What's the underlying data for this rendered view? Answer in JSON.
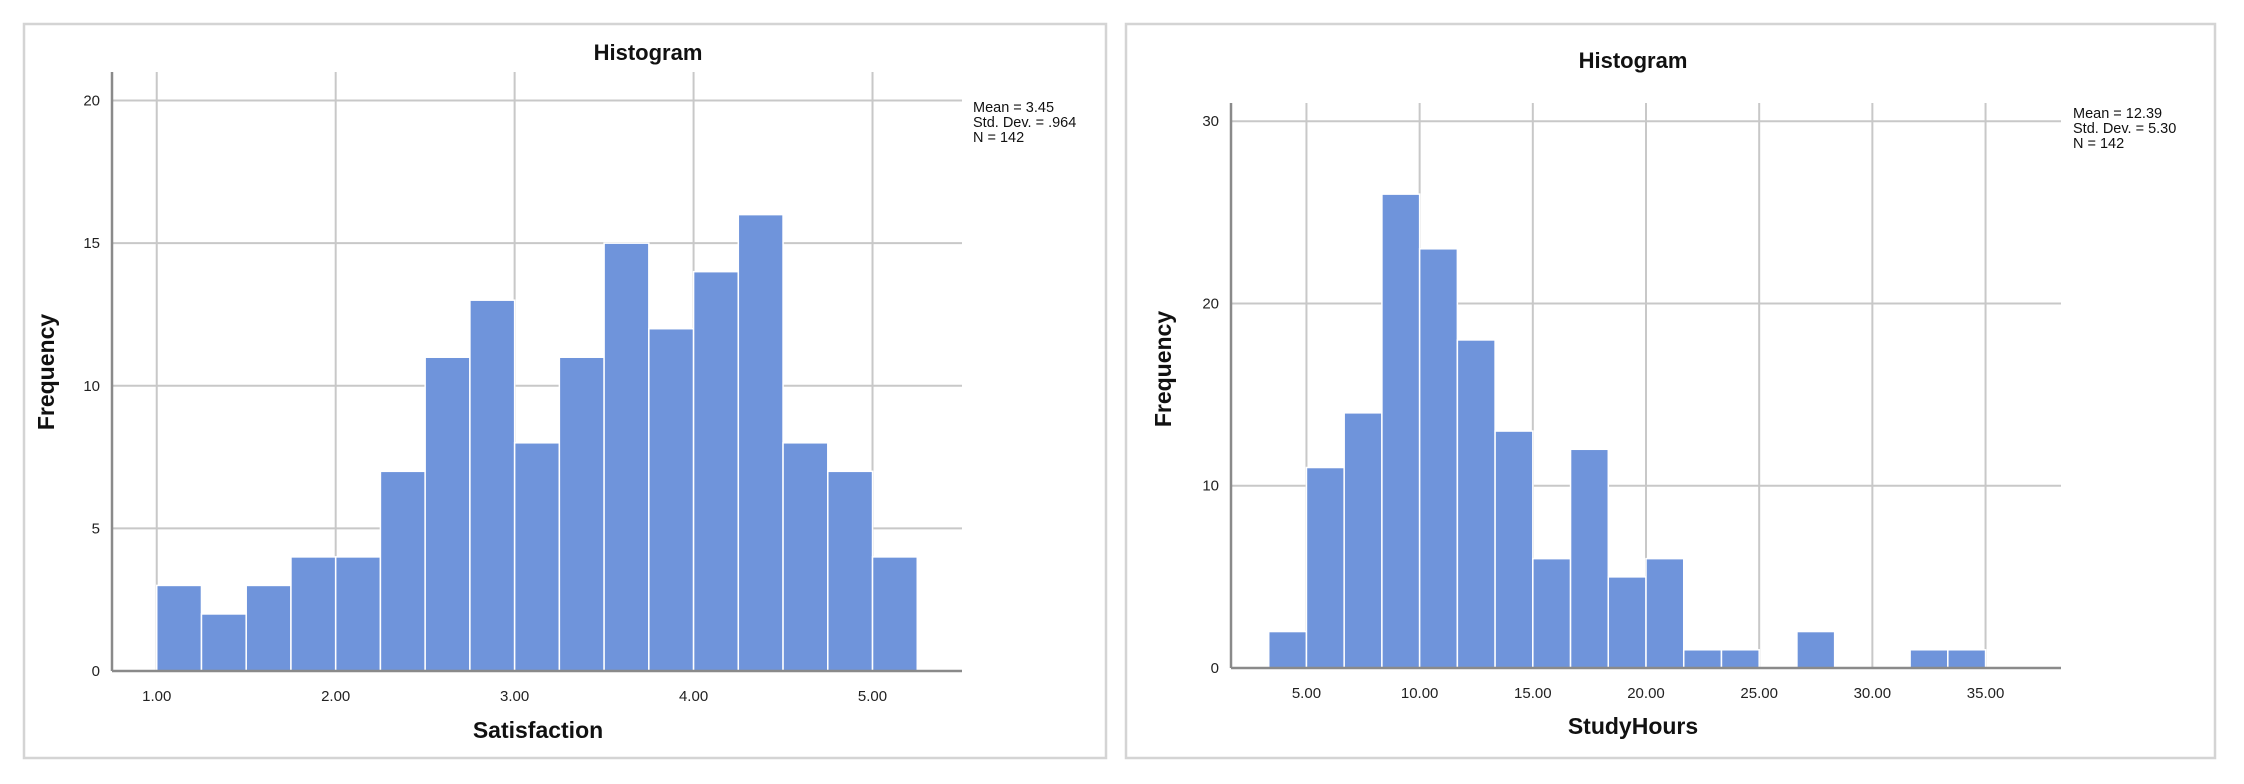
{
  "colors": {
    "bar": "#6f94db"
  },
  "chart_data": [
    {
      "type": "bar",
      "title": "Histogram",
      "xlabel": "Satisfaction",
      "ylabel": "Frequency",
      "bin_start": 1.0,
      "bin_width": 0.25,
      "values": [
        3,
        2,
        3,
        4,
        4,
        7,
        11,
        13,
        8,
        11,
        15,
        12,
        14,
        16,
        8,
        7,
        4
      ],
      "xlim": [
        0.75,
        5.5
      ],
      "ylim": [
        0,
        21
      ],
      "xticks": [
        1,
        2,
        3,
        4,
        5
      ],
      "xtick_labels": [
        "1.00",
        "2.00",
        "3.00",
        "4.00",
        "5.00"
      ],
      "yticks": [
        0,
        5,
        10,
        15,
        20
      ],
      "ytick_labels": [
        "0",
        "5",
        "10",
        "15",
        "20"
      ],
      "stats": [
        "Mean = 3.45",
        "Std. Dev. = .964",
        "N = 142"
      ],
      "grid": true
    },
    {
      "type": "bar",
      "title": "Histogram",
      "xlabel": "StudyHours",
      "ylabel": "Frequency",
      "bin_start": 3.3333,
      "bin_width": 1.6667,
      "values": [
        2,
        11,
        14,
        26,
        23,
        18,
        13,
        6,
        12,
        5,
        6,
        1,
        1,
        0,
        2,
        0,
        0,
        1,
        1
      ],
      "xlim": [
        1.6667,
        38.3333
      ],
      "ylim": [
        0,
        31
      ],
      "xticks": [
        5,
        10,
        15,
        20,
        25,
        30,
        35
      ],
      "xtick_labels": [
        "5.00",
        "10.00",
        "15.00",
        "20.00",
        "25.00",
        "30.00",
        "35.00"
      ],
      "yticks": [
        0,
        10,
        20,
        30
      ],
      "ytick_labels": [
        "0",
        "10",
        "20",
        "30"
      ],
      "stats": [
        "Mean = 12.39",
        "Std. Dev. = 5.30",
        "N = 142"
      ],
      "grid": true
    }
  ]
}
